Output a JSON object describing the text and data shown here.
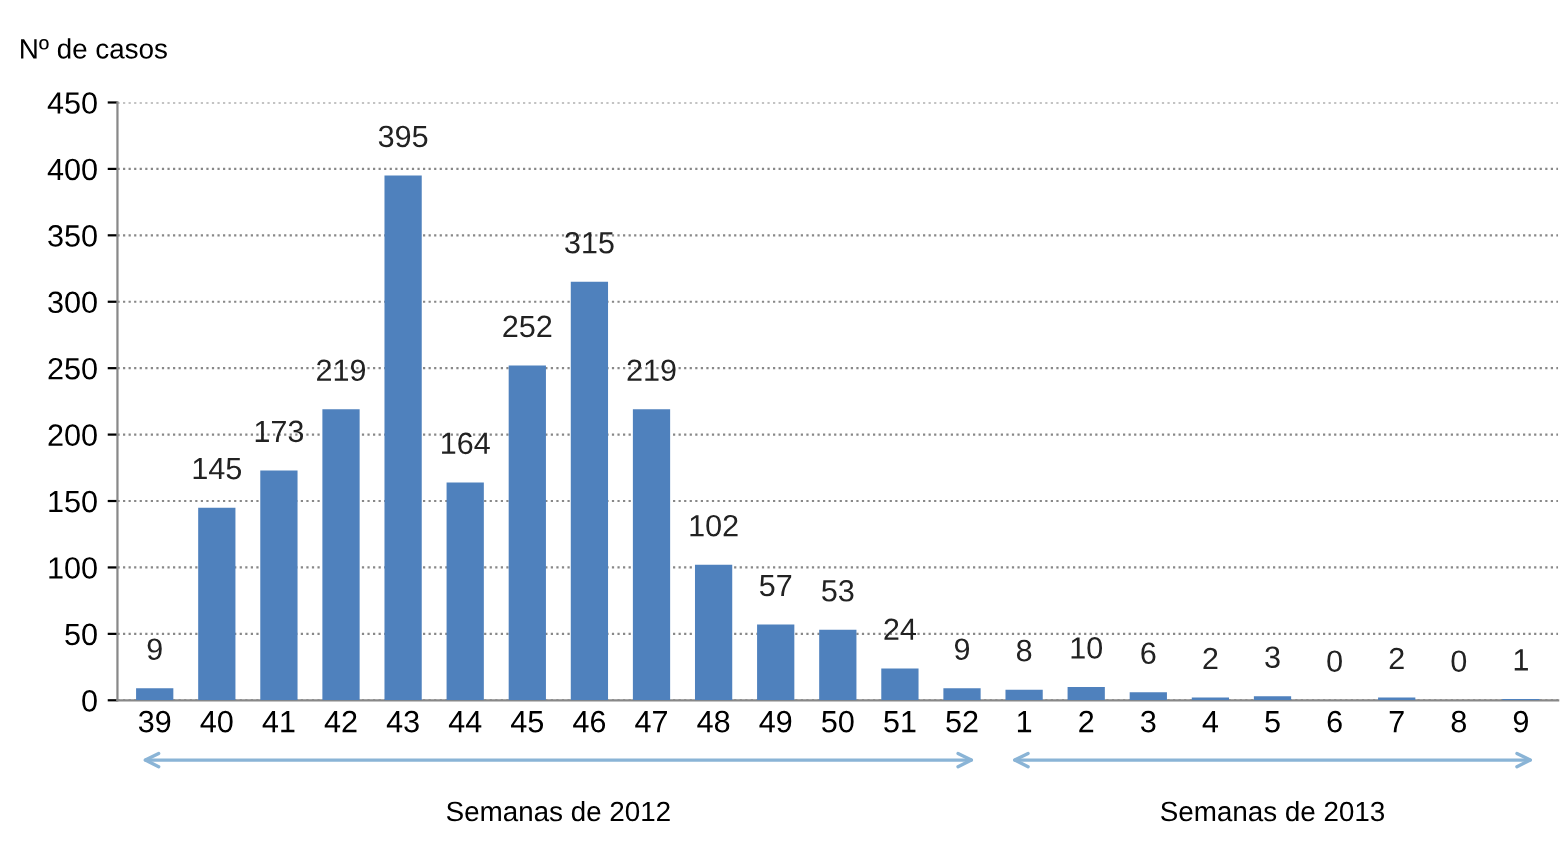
{
  "chart_data": {
    "type": "bar",
    "ylabel": "Nº de casos",
    "categories": [
      "39",
      "40",
      "41",
      "42",
      "43",
      "44",
      "45",
      "46",
      "47",
      "48",
      "49",
      "50",
      "51",
      "52",
      "1",
      "2",
      "3",
      "4",
      "5",
      "6",
      "7",
      "8",
      "9"
    ],
    "values": [
      9,
      145,
      173,
      219,
      395,
      164,
      252,
      315,
      219,
      102,
      57,
      53,
      24,
      9,
      8,
      10,
      6,
      2,
      3,
      0,
      2,
      0,
      1
    ],
    "color": "#4f81bd",
    "data_labels": true,
    "ylim": [
      0,
      450
    ],
    "yticks": [
      0,
      50,
      100,
      150,
      200,
      250,
      300,
      350,
      400,
      450
    ],
    "grid": "y",
    "annotations": [
      "Semanas de 2012",
      "Semanas de 2013"
    ]
  }
}
